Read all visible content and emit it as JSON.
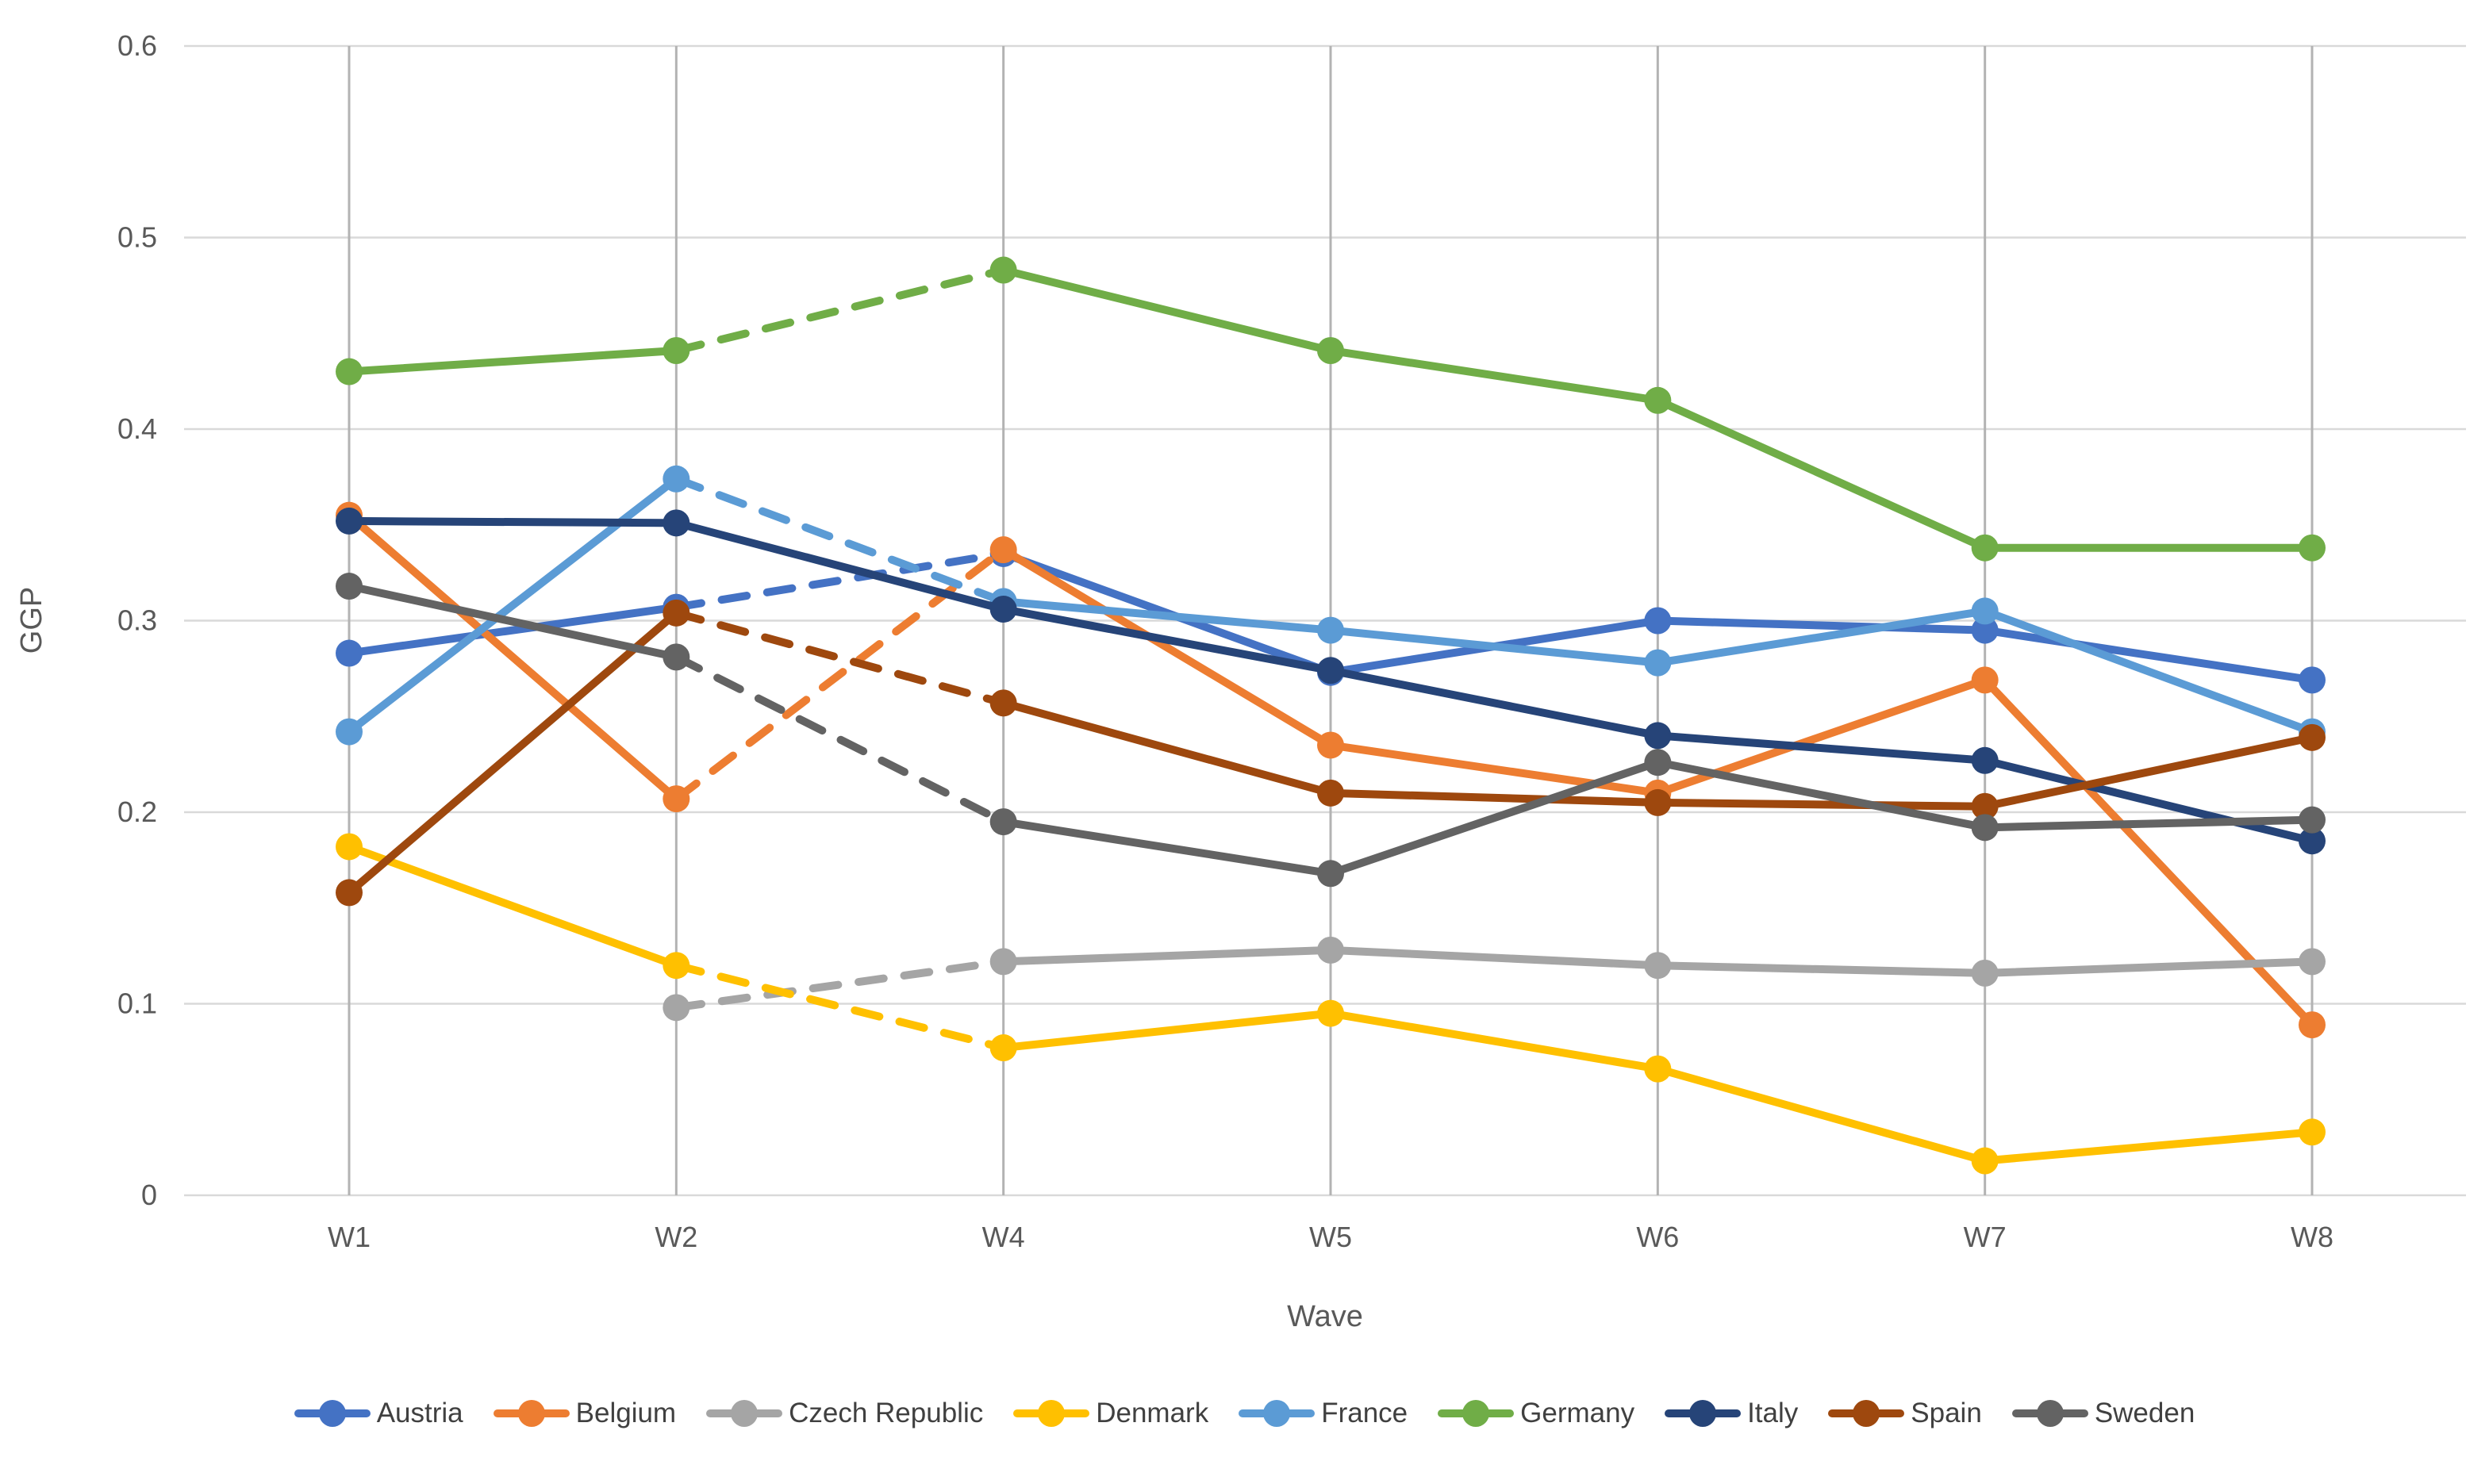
{
  "chart_data": {
    "type": "line",
    "title": "",
    "xlabel": "Wave",
    "ylabel": "GGP",
    "categories": [
      "W1",
      "W2",
      "W4",
      "W5",
      "W6",
      "W7",
      "W8"
    ],
    "ylim": [
      0,
      0.6
    ],
    "ytick_step": 0.1,
    "ytick_labels": [
      "0",
      "0.1",
      "0.2",
      "0.3",
      "0.4",
      "0.5",
      "0.6"
    ],
    "grid": true,
    "legend_position": "bottom",
    "dashed_note": "Segment between W2 and W4 is dashed for every series except Italy; Czech Republic has no W1 value",
    "axis_text_color": "#595959",
    "gridline_color": "#D9D9D9",
    "category_line_color": "#B3B3B3",
    "series": [
      {
        "name": "Austria",
        "color": "#4472C4",
        "values": [
          0.283,
          0.307,
          0.335,
          0.273,
          0.3,
          0.295,
          0.269
        ],
        "dashed_between": [
          [
            1,
            2
          ]
        ]
      },
      {
        "name": "Belgium",
        "color": "#ED7D31",
        "values": [
          0.355,
          0.207,
          0.337,
          0.235,
          0.21,
          0.269,
          0.089
        ],
        "dashed_between": [
          [
            1,
            2
          ]
        ]
      },
      {
        "name": "Czech Republic",
        "color": "#A5A5A5",
        "values": [
          null,
          0.098,
          0.122,
          0.128,
          0.12,
          0.116,
          0.122
        ],
        "dashed_between": [
          [
            1,
            2
          ]
        ]
      },
      {
        "name": "Denmark",
        "color": "#FFC000",
        "values": [
          0.182,
          0.12,
          0.077,
          0.095,
          0.066,
          0.018,
          0.033
        ],
        "dashed_between": [
          [
            1,
            2
          ]
        ]
      },
      {
        "name": "France",
        "color": "#5B9BD5",
        "values": [
          0.242,
          0.374,
          0.31,
          0.295,
          0.278,
          0.305,
          0.242
        ],
        "dashed_between": [
          [
            1,
            2
          ]
        ]
      },
      {
        "name": "Germany",
        "color": "#70AD47",
        "values": [
          0.43,
          0.441,
          0.483,
          0.441,
          0.415,
          0.338,
          0.338
        ],
        "dashed_between": [
          [
            1,
            2
          ]
        ]
      },
      {
        "name": "Italy",
        "color": "#264478",
        "values": [
          0.352,
          0.351,
          0.306,
          0.274,
          0.24,
          0.227,
          0.185
        ],
        "dashed_between": []
      },
      {
        "name": "Spain",
        "color": "#9E480E",
        "values": [
          0.158,
          0.304,
          0.257,
          0.21,
          0.205,
          0.203,
          0.239
        ],
        "dashed_between": [
          [
            1,
            2
          ]
        ]
      },
      {
        "name": "Sweden",
        "color": "#636363",
        "values": [
          0.318,
          0.281,
          0.195,
          0.168,
          0.226,
          0.192,
          0.196
        ],
        "dashed_between": [
          [
            1,
            2
          ]
        ]
      }
    ]
  }
}
